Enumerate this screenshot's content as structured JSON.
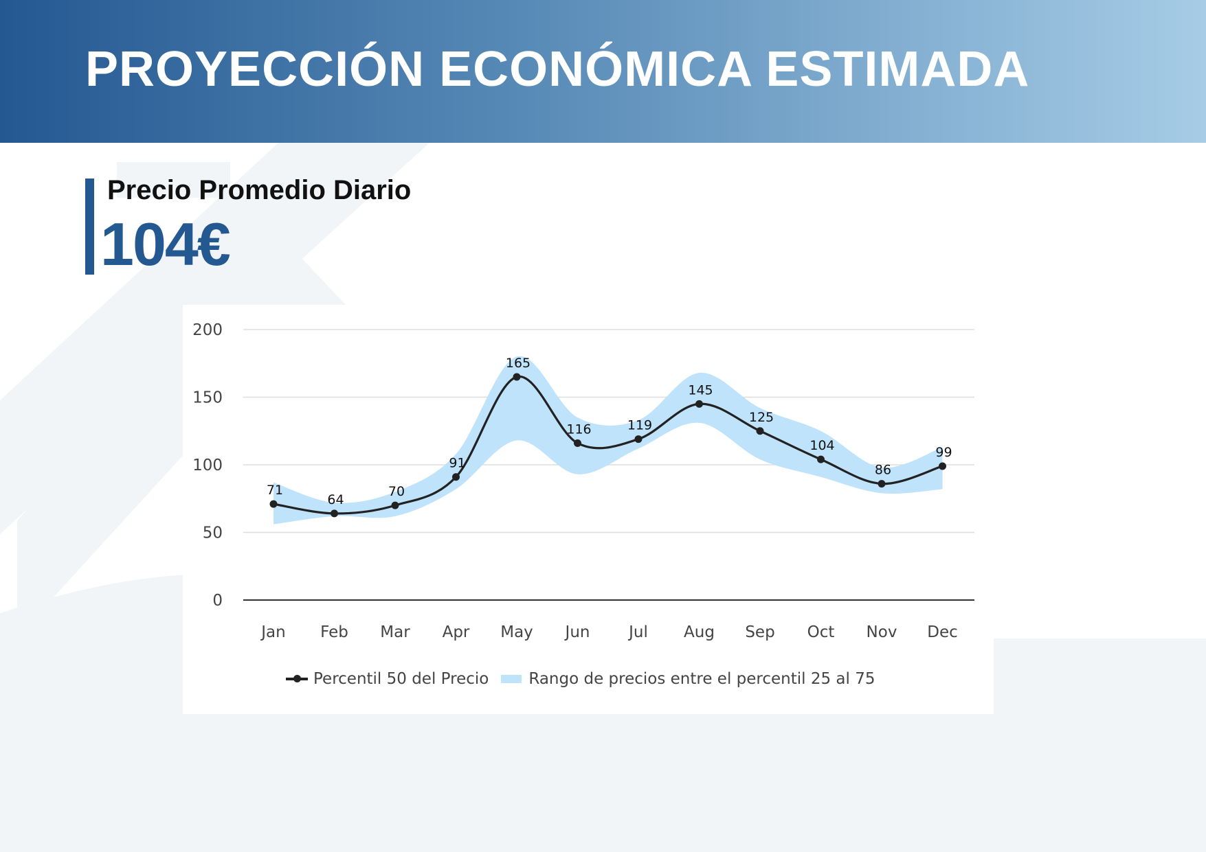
{
  "header": {
    "title": "PROYECCIÓN ECONÓMICA ESTIMADA"
  },
  "metric": {
    "label": "Precio Promedio Diario",
    "value": "104€"
  },
  "colors": {
    "accent": "#245891",
    "line": "#222222",
    "band": "#bfe3fb",
    "grid": "#dddddd"
  },
  "chart_data": {
    "type": "line",
    "categories": [
      "Jan",
      "Feb",
      "Mar",
      "Apr",
      "May",
      "Jun",
      "Jul",
      "Aug",
      "Sep",
      "Oct",
      "Nov",
      "Dec"
    ],
    "series": [
      {
        "name": "Percentil 50 del Precio",
        "values": [
          71,
          64,
          70,
          91,
          165,
          116,
          119,
          145,
          125,
          104,
          86,
          99
        ]
      }
    ],
    "band": {
      "name": "Rango de precios entre el percentil 25 al 75",
      "upper": [
        87,
        72,
        80,
        108,
        180,
        135,
        133,
        168,
        142,
        125,
        98,
        113
      ],
      "lower": [
        56,
        62,
        62,
        82,
        118,
        93,
        112,
        131,
        104,
        91,
        79,
        82
      ]
    },
    "ylim": [
      0,
      200
    ],
    "yticks": [
      0,
      50,
      100,
      150,
      200
    ],
    "title": "",
    "xlabel": "",
    "ylabel": "",
    "grid": true,
    "legend": "bottom"
  }
}
